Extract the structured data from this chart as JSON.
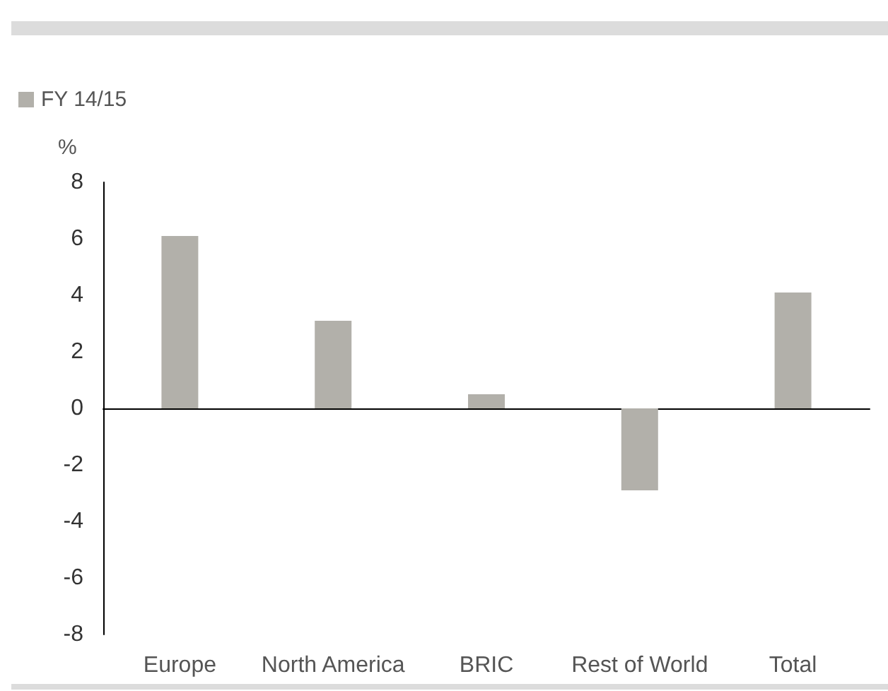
{
  "chart_data": {
    "type": "bar",
    "ylabel": "%",
    "categories": [
      "Europe",
      "North America",
      "BRIC",
      "Rest of World",
      "Total"
    ],
    "series": [
      {
        "name": "FY 14/15",
        "color": "#b2b0aa",
        "values": [
          6.1,
          3.1,
          0.5,
          -2.9,
          4.1
        ]
      }
    ],
    "ylim": [
      -8,
      8
    ],
    "yticks": [
      -8,
      -6,
      -4,
      -2,
      0,
      2,
      4,
      6,
      8
    ],
    "legend": "top left"
  }
}
